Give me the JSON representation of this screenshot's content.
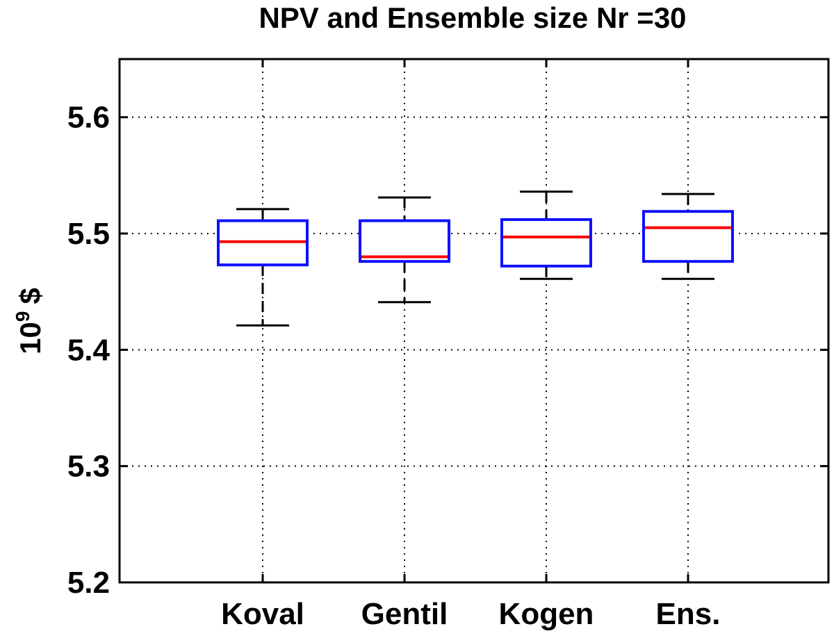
{
  "chart_data": {
    "type": "boxplot",
    "title": "NPV  and Ensemble size Nr =30",
    "xlabel": "",
    "ylabel": {
      "base": "10",
      "exponent": "9",
      "unit": "$"
    },
    "ylim": [
      5.2,
      5.65
    ],
    "yticks": [
      5.2,
      5.3,
      5.4,
      5.5,
      5.6
    ],
    "ytick_labels": [
      "5.2",
      "5.3",
      "5.4",
      "5.5",
      "5.6"
    ],
    "grid": true,
    "categories": [
      "Koval",
      "Gentil",
      "Kogen",
      "Ens."
    ],
    "boxes": [
      {
        "name": "Koval",
        "whisker_low": 5.421,
        "q1": 5.473,
        "median": 5.493,
        "q3": 5.511,
        "whisker_high": 5.521
      },
      {
        "name": "Gentil",
        "whisker_low": 5.441,
        "q1": 5.476,
        "median": 5.48,
        "q3": 5.511,
        "whisker_high": 5.531
      },
      {
        "name": "Kogen",
        "whisker_low": 5.461,
        "q1": 5.472,
        "median": 5.497,
        "q3": 5.512,
        "whisker_high": 5.536
      },
      {
        "name": "Ens.",
        "whisker_low": 5.461,
        "q1": 5.476,
        "median": 5.505,
        "q3": 5.519,
        "whisker_high": 5.534
      }
    ],
    "colors": {
      "box": "#1010ff",
      "median": "#ff0000",
      "whisker": "#000000",
      "grid": "#000000"
    }
  }
}
